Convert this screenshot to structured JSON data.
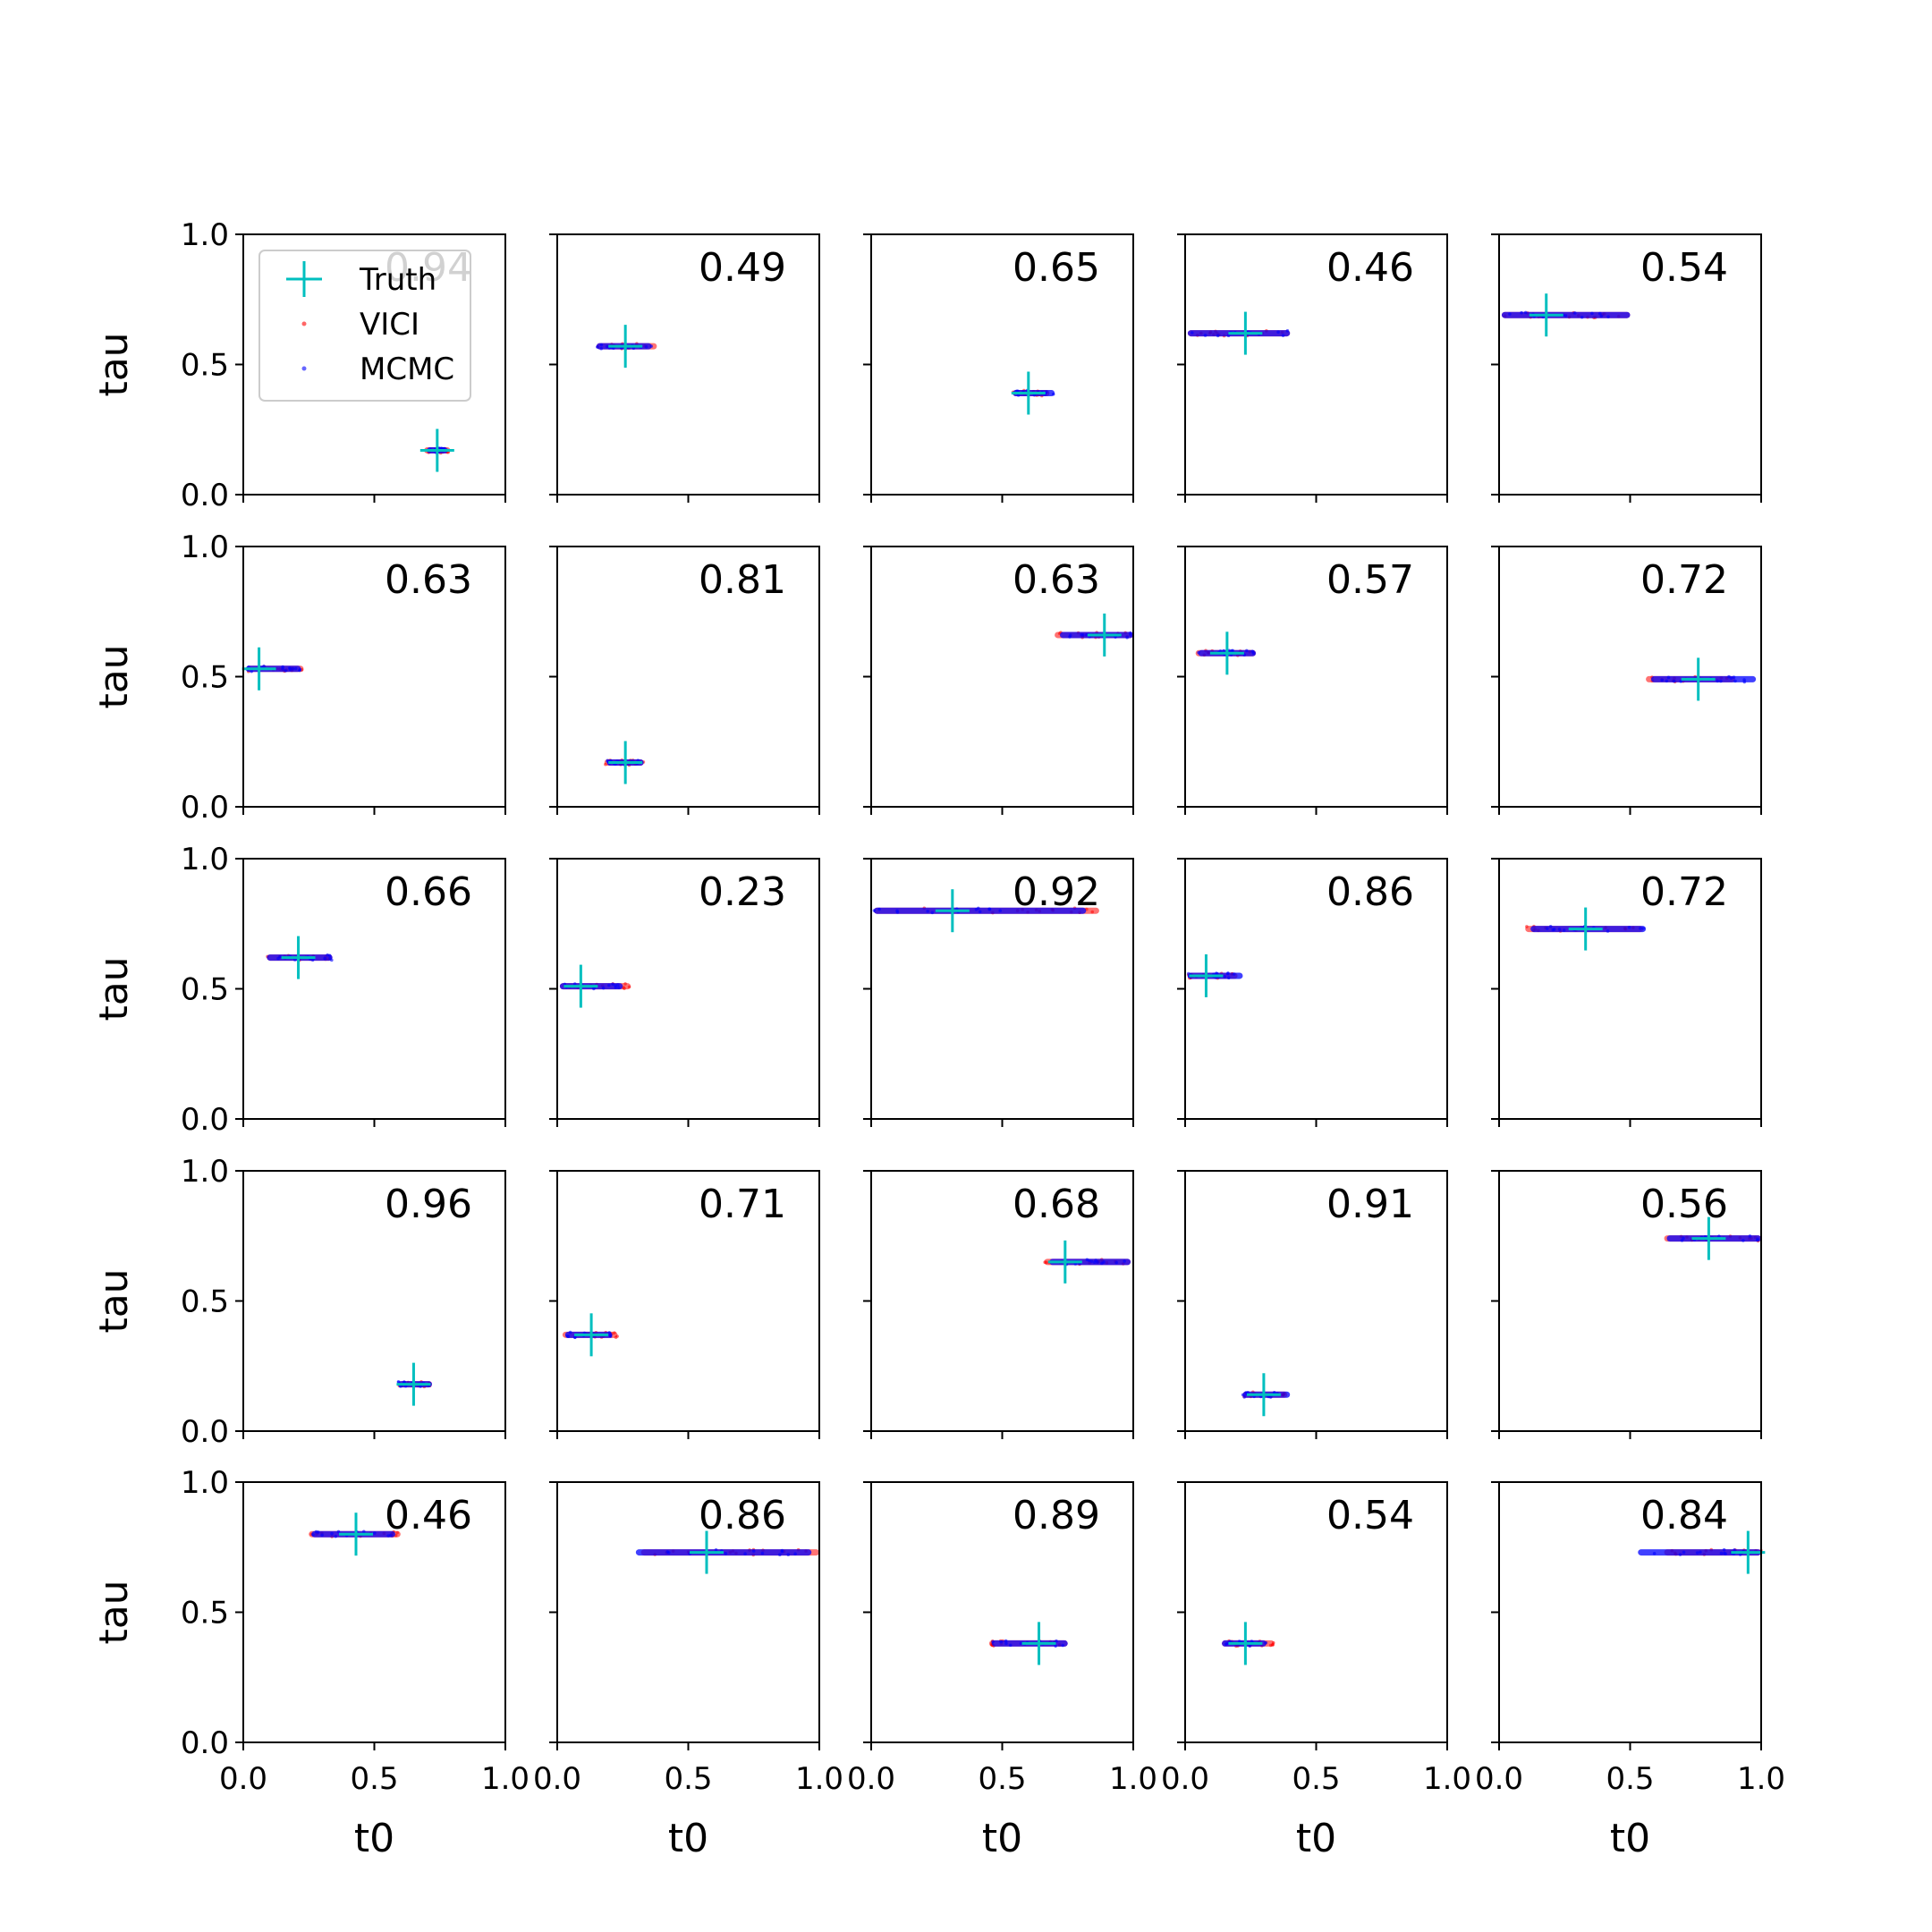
{
  "colors": {
    "truth": "#00bfbf",
    "vici": "#ff0000",
    "mcmc": "#0000ff",
    "axes": "#000000"
  },
  "legend": {
    "placement": "upper-left of first panel",
    "entries": [
      "Truth",
      "VICI",
      "MCMC"
    ]
  },
  "chart_data": {
    "type": "scatter",
    "layout": "5x5 grid of panels",
    "xlabel": "t0",
    "ylabel": "tau",
    "xlim": [
      0,
      1
    ],
    "ylim": [
      0,
      1
    ],
    "xticks": [
      "0.0",
      "0.5",
      "1.0"
    ],
    "yticks": [
      "0.0",
      "0.5",
      "1.0"
    ],
    "grid": false,
    "panels": [
      {
        "score": "0.94",
        "truth": [
          0.74,
          0.17
        ],
        "vici": {
          "x": [
            0.69,
            0.79
          ],
          "y": 0.17
        },
        "mcmc": {
          "x": [
            0.7,
            0.78
          ],
          "y": 0.17
        }
      },
      {
        "score": "0.49",
        "truth": [
          0.26,
          0.57
        ],
        "vici": {
          "x": [
            0.15,
            0.38
          ],
          "y": 0.57
        },
        "mcmc": {
          "x": [
            0.15,
            0.36
          ],
          "y": 0.57
        }
      },
      {
        "score": "0.65",
        "truth": [
          0.6,
          0.39
        ],
        "vici": {
          "x": [
            0.54,
            0.68
          ],
          "y": 0.39
        },
        "mcmc": {
          "x": [
            0.54,
            0.7
          ],
          "y": 0.39
        }
      },
      {
        "score": "0.46",
        "truth": [
          0.23,
          0.62
        ],
        "vici": {
          "x": [
            0.01,
            0.4
          ],
          "y": 0.62
        },
        "mcmc": {
          "x": [
            0.01,
            0.4
          ],
          "y": 0.62
        }
      },
      {
        "score": "0.54",
        "truth": [
          0.18,
          0.69
        ],
        "vici": {
          "x": [
            0.01,
            0.5
          ],
          "y": 0.69
        },
        "mcmc": {
          "x": [
            0.01,
            0.5
          ],
          "y": 0.69
        }
      },
      {
        "score": "0.63",
        "truth": [
          0.06,
          0.53
        ],
        "vici": {
          "x": [
            0.01,
            0.23
          ],
          "y": 0.53
        },
        "mcmc": {
          "x": [
            0.01,
            0.22
          ],
          "y": 0.53
        }
      },
      {
        "score": "0.81",
        "truth": [
          0.26,
          0.17
        ],
        "vici": {
          "x": [
            0.18,
            0.33
          ],
          "y": 0.17
        },
        "mcmc": {
          "x": [
            0.19,
            0.33
          ],
          "y": 0.17
        }
      },
      {
        "score": "0.63",
        "truth": [
          0.89,
          0.66
        ],
        "vici": {
          "x": [
            0.7,
            1.0
          ],
          "y": 0.66
        },
        "mcmc": {
          "x": [
            0.72,
            1.0
          ],
          "y": 0.66
        }
      },
      {
        "score": "0.57",
        "truth": [
          0.16,
          0.59
        ],
        "vici": {
          "x": [
            0.04,
            0.27
          ],
          "y": 0.59
        },
        "mcmc": {
          "x": [
            0.05,
            0.27
          ],
          "y": 0.59
        }
      },
      {
        "score": "0.72",
        "truth": [
          0.76,
          0.49
        ],
        "vici": {
          "x": [
            0.56,
            0.9
          ],
          "y": 0.49
        },
        "mcmc": {
          "x": [
            0.58,
            0.98
          ],
          "y": 0.49
        }
      },
      {
        "score": "0.66",
        "truth": [
          0.21,
          0.62
        ],
        "vici": {
          "x": [
            0.09,
            0.34
          ],
          "y": 0.62
        },
        "mcmc": {
          "x": [
            0.09,
            0.34
          ],
          "y": 0.62
        }
      },
      {
        "score": "0.23",
        "truth": [
          0.09,
          0.51
        ],
        "vici": {
          "x": [
            0.01,
            0.28
          ],
          "y": 0.51
        },
        "mcmc": {
          "x": [
            0.01,
            0.25
          ],
          "y": 0.51
        }
      },
      {
        "score": "0.92",
        "truth": [
          0.31,
          0.8
        ],
        "vici": {
          "x": [
            0.01,
            0.87
          ],
          "y": 0.8
        },
        "mcmc": {
          "x": [
            0.01,
            0.82
          ],
          "y": 0.8
        }
      },
      {
        "score": "0.86",
        "truth": [
          0.08,
          0.55
        ],
        "vici": {
          "x": [
            0.01,
            0.2
          ],
          "y": 0.55
        },
        "mcmc": {
          "x": [
            0.01,
            0.22
          ],
          "y": 0.55
        }
      },
      {
        "score": "0.72",
        "truth": [
          0.33,
          0.73
        ],
        "vici": {
          "x": [
            0.1,
            0.55
          ],
          "y": 0.73
        },
        "mcmc": {
          "x": [
            0.12,
            0.56
          ],
          "y": 0.73
        }
      },
      {
        "score": "0.96",
        "truth": [
          0.65,
          0.18
        ],
        "vici": {
          "x": [
            0.59,
            0.72
          ],
          "y": 0.18
        },
        "mcmc": {
          "x": [
            0.59,
            0.72
          ],
          "y": 0.18
        }
      },
      {
        "score": "0.71",
        "truth": [
          0.13,
          0.37
        ],
        "vici": {
          "x": [
            0.02,
            0.23
          ],
          "y": 0.37
        },
        "mcmc": {
          "x": [
            0.03,
            0.21
          ],
          "y": 0.37
        }
      },
      {
        "score": "0.68",
        "truth": [
          0.74,
          0.65
        ],
        "vici": {
          "x": [
            0.66,
            0.99
          ],
          "y": 0.65
        },
        "mcmc": {
          "x": [
            0.68,
            0.99
          ],
          "y": 0.65
        }
      },
      {
        "score": "0.91",
        "truth": [
          0.3,
          0.14
        ],
        "vici": {
          "x": [
            0.22,
            0.39
          ],
          "y": 0.14
        },
        "mcmc": {
          "x": [
            0.22,
            0.4
          ],
          "y": 0.14
        }
      },
      {
        "score": "0.56",
        "truth": [
          0.8,
          0.74
        ],
        "vici": {
          "x": [
            0.63,
            1.0
          ],
          "y": 0.74
        },
        "mcmc": {
          "x": [
            0.64,
            1.0
          ],
          "y": 0.74
        }
      },
      {
        "score": "0.46",
        "truth": [
          0.43,
          0.8
        ],
        "vici": {
          "x": [
            0.25,
            0.6
          ],
          "y": 0.8
        },
        "mcmc": {
          "x": [
            0.26,
            0.58
          ],
          "y": 0.8
        }
      },
      {
        "score": "0.86",
        "truth": [
          0.57,
          0.73
        ],
        "vici": {
          "x": [
            0.32,
            1.0
          ],
          "y": 0.73
        },
        "mcmc": {
          "x": [
            0.3,
            0.97
          ],
          "y": 0.73
        }
      },
      {
        "score": "0.89",
        "truth": [
          0.64,
          0.38
        ],
        "vici": {
          "x": [
            0.45,
            0.75
          ],
          "y": 0.38
        },
        "mcmc": {
          "x": [
            0.46,
            0.75
          ],
          "y": 0.38
        }
      },
      {
        "score": "0.54",
        "truth": [
          0.23,
          0.38
        ],
        "vici": {
          "x": [
            0.14,
            0.34
          ],
          "y": 0.38
        },
        "mcmc": {
          "x": [
            0.14,
            0.31
          ],
          "y": 0.38
        }
      },
      {
        "score": "0.84",
        "truth": [
          0.95,
          0.73
        ],
        "vici": {
          "x": [
            0.63,
            1.0
          ],
          "y": 0.73
        },
        "mcmc": {
          "x": [
            0.53,
            1.0
          ],
          "y": 0.73
        }
      }
    ]
  }
}
